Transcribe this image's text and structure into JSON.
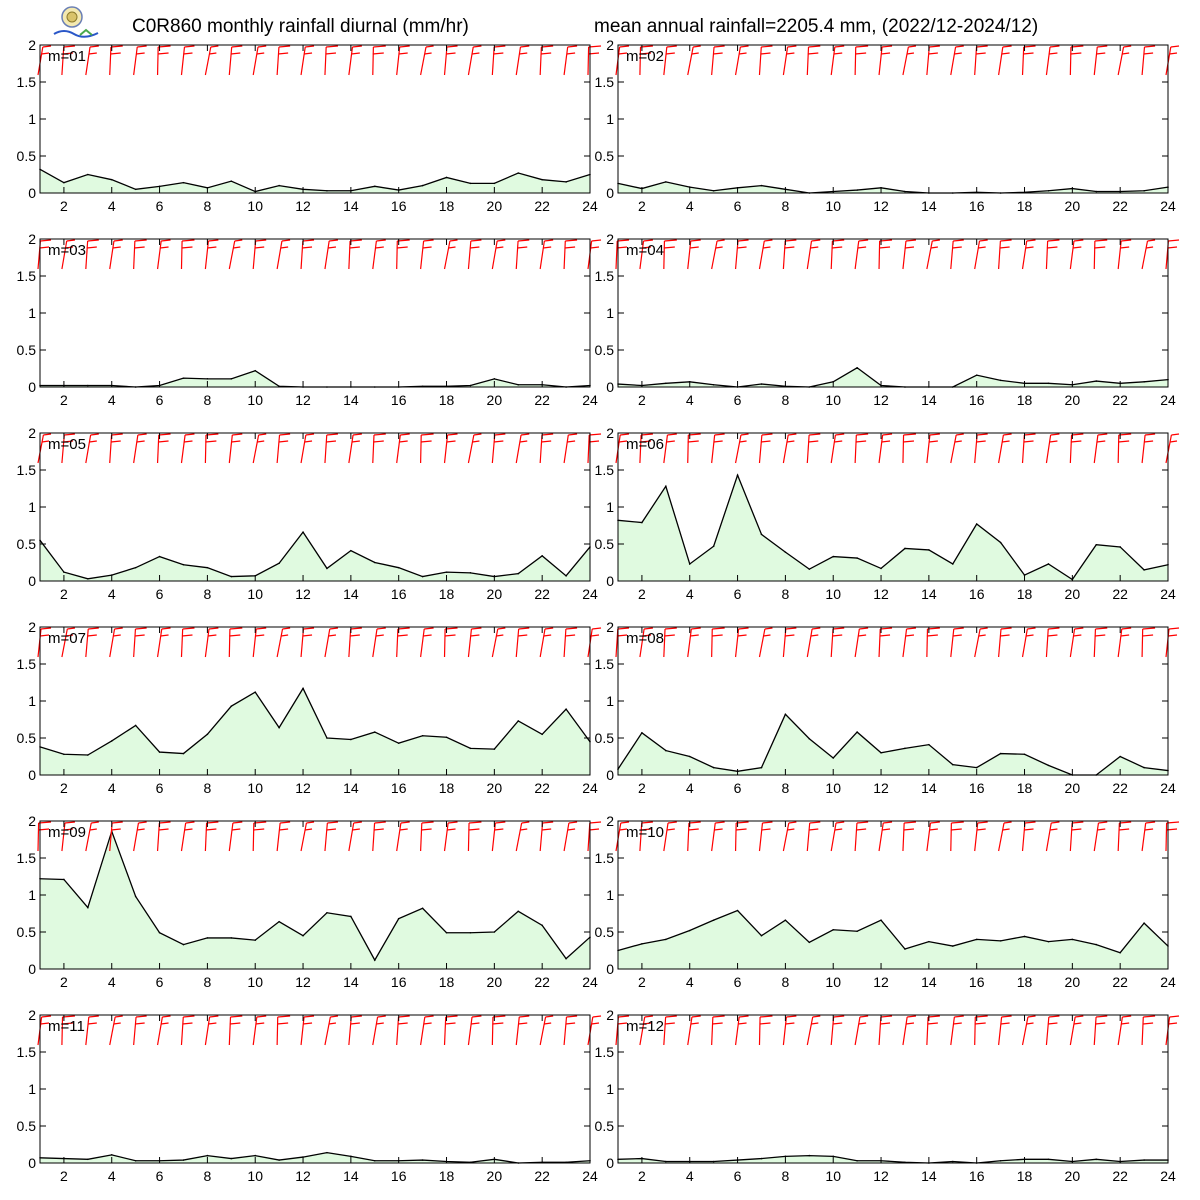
{
  "header": {
    "title_left": "C0R860 monthly rainfall diurnal (mm/hr)",
    "title_right": "mean annual rainfall=2205.4 mm, (2022/12-2024/12)"
  },
  "colors": {
    "fill": "#e0fae0",
    "line": "#000000",
    "wind_barb": "#ff0000",
    "axes": "#000000"
  },
  "chart_data": [
    {
      "type": "area",
      "label": "m=01",
      "x": [
        1,
        2,
        3,
        4,
        5,
        6,
        7,
        8,
        9,
        10,
        11,
        12,
        13,
        14,
        15,
        16,
        17,
        18,
        19,
        20,
        21,
        22,
        23,
        24
      ],
      "values": [
        0.32,
        0.14,
        0.25,
        0.18,
        0.05,
        0.09,
        0.14,
        0.07,
        0.16,
        0.02,
        0.1,
        0.05,
        0.03,
        0.03,
        0.09,
        0.04,
        0.1,
        0.21,
        0.13,
        0.13,
        0.27,
        0.18,
        0.15,
        0.25
      ],
      "ylim": [
        0,
        2
      ],
      "xlim": [
        1,
        24
      ],
      "yticks": [
        "0",
        "0.5",
        "1",
        "1.5",
        "2"
      ],
      "xticks": [
        "2",
        "4",
        "6",
        "8",
        "10",
        "12",
        "14",
        "16",
        "18",
        "20",
        "22",
        "24"
      ]
    },
    {
      "type": "area",
      "label": "m=02",
      "x": [
        1,
        2,
        3,
        4,
        5,
        6,
        7,
        8,
        9,
        10,
        11,
        12,
        13,
        14,
        15,
        16,
        17,
        18,
        19,
        20,
        21,
        22,
        23,
        24
      ],
      "values": [
        0.13,
        0.06,
        0.15,
        0.08,
        0.03,
        0.07,
        0.1,
        0.05,
        0.0,
        0.02,
        0.04,
        0.07,
        0.02,
        0.0,
        0.0,
        0.01,
        0.0,
        0.01,
        0.03,
        0.06,
        0.02,
        0.02,
        0.03,
        0.08
      ],
      "ylim": [
        0,
        2
      ],
      "xlim": [
        1,
        24
      ],
      "yticks": [
        "0",
        "0.5",
        "1",
        "1.5",
        "2"
      ],
      "xticks": [
        "2",
        "4",
        "6",
        "8",
        "10",
        "12",
        "14",
        "16",
        "18",
        "20",
        "22",
        "24"
      ]
    },
    {
      "type": "area",
      "label": "m=03",
      "x": [
        1,
        2,
        3,
        4,
        5,
        6,
        7,
        8,
        9,
        10,
        11,
        12,
        13,
        14,
        15,
        16,
        17,
        18,
        19,
        20,
        21,
        22,
        23,
        24
      ],
      "values": [
        0.02,
        0.02,
        0.02,
        0.02,
        0.0,
        0.02,
        0.12,
        0.11,
        0.11,
        0.22,
        0.01,
        0.0,
        0.0,
        0.0,
        0.0,
        0.0,
        0.01,
        0.01,
        0.02,
        0.11,
        0.03,
        0.03,
        0.0,
        0.02
      ],
      "ylim": [
        0,
        2
      ],
      "xlim": [
        1,
        24
      ],
      "yticks": [
        "0",
        "0.5",
        "1",
        "1.5",
        "2"
      ],
      "xticks": [
        "2",
        "4",
        "6",
        "8",
        "10",
        "12",
        "14",
        "16",
        "18",
        "20",
        "22",
        "24"
      ]
    },
    {
      "type": "area",
      "label": "m=04",
      "x": [
        1,
        2,
        3,
        4,
        5,
        6,
        7,
        8,
        9,
        10,
        11,
        12,
        13,
        14,
        15,
        16,
        17,
        18,
        19,
        20,
        21,
        22,
        23,
        24
      ],
      "values": [
        0.04,
        0.02,
        0.05,
        0.07,
        0.03,
        0.0,
        0.04,
        0.01,
        0.0,
        0.07,
        0.26,
        0.02,
        0.0,
        0.0,
        0.0,
        0.16,
        0.09,
        0.05,
        0.05,
        0.03,
        0.08,
        0.05,
        0.07,
        0.1
      ],
      "ylim": [
        0,
        2
      ],
      "xlim": [
        1,
        24
      ],
      "yticks": [
        "0",
        "0.5",
        "1",
        "1.5",
        "2"
      ],
      "xticks": [
        "2",
        "4",
        "6",
        "8",
        "10",
        "12",
        "14",
        "16",
        "18",
        "20",
        "22",
        "24"
      ]
    },
    {
      "type": "area",
      "label": "m=05",
      "x": [
        1,
        2,
        3,
        4,
        5,
        6,
        7,
        8,
        9,
        10,
        11,
        12,
        13,
        14,
        15,
        16,
        17,
        18,
        19,
        20,
        21,
        22,
        23,
        24
      ],
      "values": [
        0.55,
        0.12,
        0.03,
        0.08,
        0.18,
        0.33,
        0.22,
        0.18,
        0.06,
        0.07,
        0.24,
        0.66,
        0.17,
        0.41,
        0.25,
        0.18,
        0.06,
        0.12,
        0.11,
        0.06,
        0.1,
        0.34,
        0.07,
        0.46
      ],
      "ylim": [
        0,
        2
      ],
      "xlim": [
        1,
        24
      ],
      "yticks": [
        "0",
        "0.5",
        "1",
        "1.5",
        "2"
      ],
      "xticks": [
        "2",
        "4",
        "6",
        "8",
        "10",
        "12",
        "14",
        "16",
        "18",
        "20",
        "22",
        "24"
      ]
    },
    {
      "type": "area",
      "label": "m=06",
      "x": [
        1,
        2,
        3,
        4,
        5,
        6,
        7,
        8,
        9,
        10,
        11,
        12,
        13,
        14,
        15,
        16,
        17,
        18,
        19,
        20,
        21,
        22,
        23,
        24
      ],
      "values": [
        0.82,
        0.79,
        1.28,
        0.23,
        0.47,
        1.43,
        0.63,
        0.39,
        0.16,
        0.33,
        0.31,
        0.17,
        0.44,
        0.42,
        0.23,
        0.77,
        0.52,
        0.08,
        0.23,
        0.02,
        0.49,
        0.46,
        0.15,
        0.22
      ],
      "ylim": [
        0,
        2
      ],
      "xlim": [
        1,
        24
      ],
      "yticks": [
        "0",
        "0.5",
        "1",
        "1.5",
        "2"
      ],
      "xticks": [
        "2",
        "4",
        "6",
        "8",
        "10",
        "12",
        "14",
        "16",
        "18",
        "20",
        "22",
        "24"
      ]
    },
    {
      "type": "area",
      "label": "m=07",
      "x": [
        1,
        2,
        3,
        4,
        5,
        6,
        7,
        8,
        9,
        10,
        11,
        12,
        13,
        14,
        15,
        16,
        17,
        18,
        19,
        20,
        21,
        22,
        23,
        24
      ],
      "values": [
        0.38,
        0.28,
        0.27,
        0.46,
        0.67,
        0.31,
        0.29,
        0.55,
        0.93,
        1.12,
        0.64,
        1.17,
        0.5,
        0.48,
        0.58,
        0.43,
        0.53,
        0.51,
        0.36,
        0.35,
        0.73,
        0.55,
        0.89,
        0.45
      ],
      "ylim": [
        0,
        2
      ],
      "xlim": [
        1,
        24
      ],
      "yticks": [
        "0",
        "0.5",
        "1",
        "1.5",
        "2"
      ],
      "xticks": [
        "2",
        "4",
        "6",
        "8",
        "10",
        "12",
        "14",
        "16",
        "18",
        "20",
        "22",
        "24"
      ]
    },
    {
      "type": "area",
      "label": "m=08",
      "x": [
        1,
        2,
        3,
        4,
        5,
        6,
        7,
        8,
        9,
        10,
        11,
        12,
        13,
        14,
        15,
        16,
        17,
        18,
        19,
        20,
        21,
        22,
        23,
        24
      ],
      "values": [
        0.08,
        0.57,
        0.33,
        0.25,
        0.1,
        0.05,
        0.1,
        0.82,
        0.49,
        0.23,
        0.58,
        0.3,
        0.36,
        0.41,
        0.14,
        0.1,
        0.29,
        0.28,
        0.13,
        0.0,
        0.0,
        0.25,
        0.1,
        0.06
      ],
      "ylim": [
        0,
        2
      ],
      "xlim": [
        1,
        24
      ],
      "yticks": [
        "0",
        "0.5",
        "1",
        "1.5",
        "2"
      ],
      "xticks": [
        "2",
        "4",
        "6",
        "8",
        "10",
        "12",
        "14",
        "16",
        "18",
        "20",
        "22",
        "24"
      ]
    },
    {
      "type": "area",
      "label": "m=09",
      "x": [
        1,
        2,
        3,
        4,
        5,
        6,
        7,
        8,
        9,
        10,
        11,
        12,
        13,
        14,
        15,
        16,
        17,
        18,
        19,
        20,
        21,
        22,
        23,
        24
      ],
      "values": [
        1.22,
        1.21,
        0.83,
        1.86,
        0.98,
        0.49,
        0.33,
        0.42,
        0.42,
        0.39,
        0.64,
        0.45,
        0.76,
        0.71,
        0.12,
        0.68,
        0.82,
        0.49,
        0.49,
        0.5,
        0.78,
        0.59,
        0.14,
        0.43
      ],
      "ylim": [
        0,
        2
      ],
      "xlim": [
        1,
        24
      ],
      "yticks": [
        "0",
        "0.5",
        "1",
        "1.5",
        "2"
      ],
      "xticks": [
        "2",
        "4",
        "6",
        "8",
        "10",
        "12",
        "14",
        "16",
        "18",
        "20",
        "22",
        "24"
      ]
    },
    {
      "type": "area",
      "label": "m=10",
      "x": [
        1,
        2,
        3,
        4,
        5,
        6,
        7,
        8,
        9,
        10,
        11,
        12,
        13,
        14,
        15,
        16,
        17,
        18,
        19,
        20,
        21,
        22,
        23,
        24
      ],
      "values": [
        0.25,
        0.34,
        0.4,
        0.52,
        0.66,
        0.79,
        0.45,
        0.66,
        0.36,
        0.53,
        0.51,
        0.66,
        0.27,
        0.37,
        0.31,
        0.4,
        0.38,
        0.44,
        0.37,
        0.4,
        0.33,
        0.22,
        0.62,
        0.31
      ],
      "ylim": [
        0,
        2
      ],
      "xlim": [
        1,
        24
      ],
      "yticks": [
        "0",
        "0.5",
        "1",
        "1.5",
        "2"
      ],
      "xticks": [
        "2",
        "4",
        "6",
        "8",
        "10",
        "12",
        "14",
        "16",
        "18",
        "20",
        "22",
        "24"
      ]
    },
    {
      "type": "area",
      "label": "m=11",
      "x": [
        1,
        2,
        3,
        4,
        5,
        6,
        7,
        8,
        9,
        10,
        11,
        12,
        13,
        14,
        15,
        16,
        17,
        18,
        19,
        20,
        21,
        22,
        23,
        24
      ],
      "values": [
        0.07,
        0.06,
        0.05,
        0.11,
        0.03,
        0.03,
        0.04,
        0.1,
        0.06,
        0.1,
        0.04,
        0.08,
        0.14,
        0.09,
        0.03,
        0.03,
        0.04,
        0.02,
        0.01,
        0.05,
        0.0,
        0.01,
        0.01,
        0.03
      ],
      "ylim": [
        0,
        2
      ],
      "xlim": [
        1,
        24
      ],
      "yticks": [
        "0",
        "0.5",
        "1",
        "1.5",
        "2"
      ],
      "xticks": [
        "2",
        "4",
        "6",
        "8",
        "10",
        "12",
        "14",
        "16",
        "18",
        "20",
        "22",
        "24"
      ]
    },
    {
      "type": "area",
      "label": "m=12",
      "x": [
        1,
        2,
        3,
        4,
        5,
        6,
        7,
        8,
        9,
        10,
        11,
        12,
        13,
        14,
        15,
        16,
        17,
        18,
        19,
        20,
        21,
        22,
        23,
        24
      ],
      "values": [
        0.05,
        0.06,
        0.02,
        0.02,
        0.02,
        0.04,
        0.06,
        0.09,
        0.1,
        0.09,
        0.03,
        0.03,
        0.01,
        0.0,
        0.02,
        0.0,
        0.03,
        0.05,
        0.05,
        0.02,
        0.05,
        0.02,
        0.04,
        0.04
      ],
      "ylim": [
        0,
        2
      ],
      "xlim": [
        1,
        24
      ],
      "yticks": [
        "0",
        "0.5",
        "1",
        "1.5",
        "2"
      ],
      "xticks": [
        "2",
        "4",
        "6",
        "8",
        "10",
        "12",
        "14",
        "16",
        "18",
        "20",
        "22",
        "24"
      ]
    }
  ]
}
